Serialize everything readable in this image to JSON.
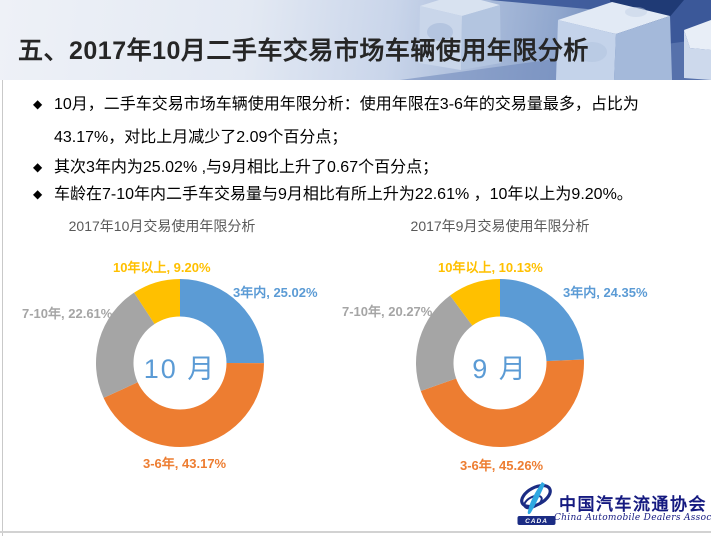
{
  "header": {
    "title": "五、2017年10月二手车交易市场车辆使用年限分析"
  },
  "bullets": [
    {
      "text": "10月，二手车交易市场车辆使用年限分析：使用年限在3-6年的交易量最多，占比为43.17%，对比上月减少了2.09个百分点；"
    },
    {
      "text": "其次3年内为25.02% ,与9月相比上升了0.67个百分点；"
    },
    {
      "text": "车龄在7-10年内二手车交易量与9月相比有所上升为22.61% ，10年以上为9.20%。"
    }
  ],
  "bullet_marker": "◆",
  "chart_data": [
    {
      "type": "pie",
      "subtype": "donut",
      "title": "2017年10月交易使用年限分析",
      "center_label": "10 月",
      "legend_position": "none",
      "slices": [
        {
          "name": "3年内",
          "value": 25.02,
          "label": "3年内, 25.02%",
          "color": "#5B9BD5"
        },
        {
          "name": "3-6年",
          "value": 43.17,
          "label": "3-6年, 43.17%",
          "color": "#ED7D31"
        },
        {
          "name": "7-10年",
          "value": 22.61,
          "label": "7-10年, 22.61%",
          "color": "#A5A5A5"
        },
        {
          "name": "10年以上",
          "value": 9.2,
          "label": "10年以上, 9.20%",
          "color": "#FFC000"
        }
      ]
    },
    {
      "type": "pie",
      "subtype": "donut",
      "title": "2017年9月交易使用年限分析",
      "center_label": "9 月",
      "legend_position": "none",
      "slices": [
        {
          "name": "3年内",
          "value": 24.35,
          "label": "3年内, 24.35%",
          "color": "#5B9BD5"
        },
        {
          "name": "3-6年",
          "value": 45.26,
          "label": "3-6年, 45.26%",
          "color": "#ED7D31"
        },
        {
          "name": "7-10年",
          "value": 20.27,
          "label": "7-10年, 20.27%",
          "color": "#A5A5A5"
        },
        {
          "name": "10年以上",
          "value": 10.13,
          "label": "10年以上, 10.13%",
          "color": "#FFC000"
        }
      ]
    }
  ],
  "footer": {
    "org_cn": "中国汽车流通协会",
    "org_en": "China Automobile Dealers Association",
    "logo_acronym": "CADA",
    "brand_navy": "#1B2C84",
    "brand_lightblue": "#2FA8E1"
  }
}
